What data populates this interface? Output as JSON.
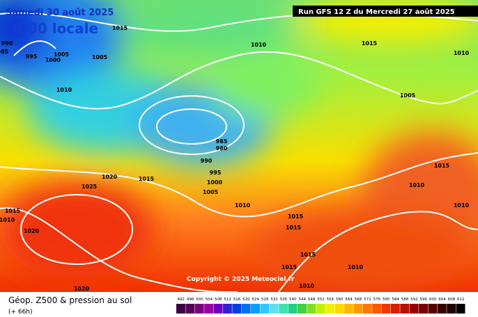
{
  "header": {
    "date": "Samedi 30 août 2025",
    "time": "8:00 locale",
    "run": "Run GFS 12 Z du Mercredi 27 août 2025"
  },
  "copyright": "Copyright © 2025 Meteociel.fr",
  "footer": {
    "title": "Géop. Z500 & pression au sol",
    "lead": "(+ 66h)"
  },
  "isobar_labels": [
    1015,
    1010,
    1015,
    1010,
    990,
    985,
    995,
    1000,
    1005,
    1005,
    1010,
    1005,
    985,
    980,
    990,
    995,
    1000,
    1005,
    1020,
    1015,
    1025,
    1010,
    1015,
    1010,
    1010,
    1015,
    1010,
    1020,
    1015,
    1015,
    1015,
    1015,
    1010,
    1010,
    1020
  ],
  "scale": {
    "labels": [
      492,
      496,
      500,
      504,
      508,
      512,
      516,
      520,
      524,
      528,
      532,
      536,
      540,
      544,
      548,
      552,
      556,
      560,
      564,
      568,
      572,
      576,
      580,
      584,
      588,
      592,
      596,
      600,
      604,
      608,
      612
    ],
    "colors": [
      "#3a0040",
      "#55005a",
      "#7a0080",
      "#9a00a0",
      "#6a00c0",
      "#3020d0",
      "#0040e0",
      "#0070f0",
      "#00a0ff",
      "#30c8ff",
      "#60e0f0",
      "#40e0b0",
      "#20d080",
      "#40d040",
      "#80e020",
      "#c0f000",
      "#f0f000",
      "#ffd800",
      "#ffb800",
      "#ff9800",
      "#ff7800",
      "#ff5800",
      "#f03800",
      "#d82000",
      "#b81000",
      "#980000",
      "#780000",
      "#580000",
      "#380000",
      "#200000",
      "#000000"
    ]
  }
}
